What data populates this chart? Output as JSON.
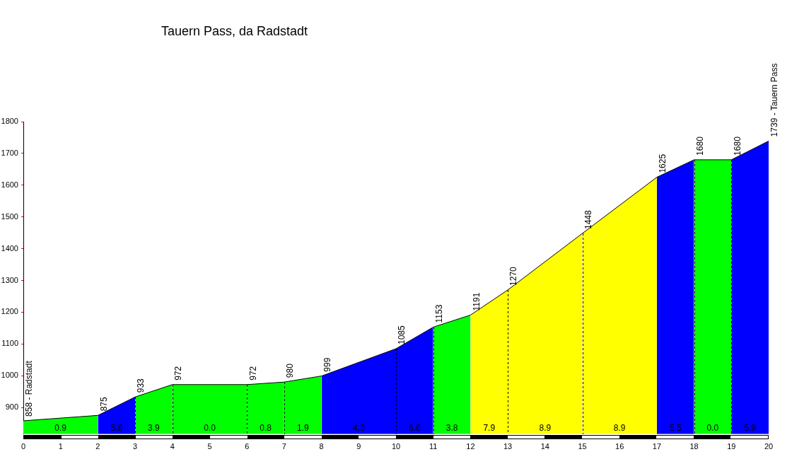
{
  "chart_data": {
    "type": "area",
    "title": "Tauern Pass, da Radstadt",
    "xlim": [
      0,
      20
    ],
    "xticks": [
      0,
      1,
      2,
      3,
      4,
      5,
      6,
      7,
      8,
      9,
      10,
      11,
      12,
      13,
      14,
      15,
      16,
      17,
      18,
      19,
      20
    ],
    "ylim": [
      816,
      1800
    ],
    "yticks": [
      900,
      1000,
      1100,
      1200,
      1300,
      1400,
      1500,
      1600,
      1700,
      1800
    ],
    "legend": false,
    "marker": "none",
    "series": [
      {
        "type": "line",
        "color": "#000000",
        "x": [
          0,
          2,
          3,
          4,
          6,
          7,
          8,
          10,
          11,
          12,
          13,
          15,
          17,
          18,
          19,
          20
        ],
        "values": [
          858,
          875,
          933,
          972,
          972,
          980,
          999,
          1085,
          1153,
          1191,
          1270,
          1448,
          1625,
          1680,
          1680,
          1739
        ],
        "value_labels": [
          "858 - Radstadt",
          "875",
          "933",
          "972",
          "972",
          "980",
          "999",
          "1085",
          "1153",
          "1191",
          "1270",
          "1448",
          "1625",
          "1680",
          "1680",
          "1739 - Tauern Pass"
        ]
      },
      {
        "color": "#00ff00",
        "x": [
          0,
          2
        ],
        "values": [
          858,
          875
        ]
      },
      {
        "color": "#0000ff",
        "x": [
          2,
          3
        ],
        "values": [
          875,
          933
        ]
      },
      {
        "color": "#00ff00",
        "x": [
          3,
          4
        ],
        "values": [
          933,
          972
        ]
      },
      {
        "color": "#00ff00",
        "x": [
          4,
          6
        ],
        "values": [
          972,
          972
        ]
      },
      {
        "color": "#00ff00",
        "x": [
          6,
          7
        ],
        "values": [
          972,
          980
        ]
      },
      {
        "color": "#00ff00",
        "x": [
          7,
          8
        ],
        "values": [
          980,
          999
        ]
      },
      {
        "color": "#0000ff",
        "x": [
          8,
          10
        ],
        "values": [
          999,
          1085
        ]
      },
      {
        "color": "#0000ff",
        "x": [
          10,
          11
        ],
        "values": [
          1085,
          1153
        ]
      },
      {
        "color": "#00ff00",
        "x": [
          11,
          12
        ],
        "values": [
          1153,
          1191
        ]
      },
      {
        "color": "#ffff00",
        "x": [
          12,
          13
        ],
        "values": [
          1191,
          1270
        ]
      },
      {
        "color": "#ffff00",
        "x": [
          13,
          15
        ],
        "values": [
          1270,
          1448
        ]
      },
      {
        "color": "#ffff00",
        "x": [
          15,
          17
        ],
        "values": [
          1448,
          1625
        ]
      },
      {
        "color": "#0000ff",
        "x": [
          17,
          18
        ],
        "values": [
          1625,
          1680
        ]
      },
      {
        "color": "#00ff00",
        "x": [
          18,
          19
        ],
        "values": [
          1680,
          1680
        ]
      },
      {
        "color": "#0000ff",
        "x": [
          19,
          20
        ],
        "values": [
          1680,
          1739
        ]
      }
    ],
    "ref_lines": [
      {
        "axis": "x",
        "value": 3,
        "line_style": "dashed"
      },
      {
        "axis": "x",
        "value": 4,
        "line_style": "dashed"
      },
      {
        "axis": "x",
        "value": 6,
        "line_style": "dashed"
      },
      {
        "axis": "x",
        "value": 7,
        "line_style": "dashed"
      },
      {
        "axis": "x",
        "value": 10,
        "line_style": "dashed"
      },
      {
        "axis": "x",
        "value": 11,
        "line_style": "dashed"
      },
      {
        "axis": "x",
        "value": 13,
        "line_style": "dashed"
      },
      {
        "axis": "x",
        "value": 15,
        "line_style": "dashed"
      },
      {
        "axis": "x",
        "value": 18,
        "line_style": "dashed"
      },
      {
        "axis": "x",
        "value": 19,
        "line_style": "dashed"
      }
    ],
    "annotations": [
      "0.9",
      "5.8",
      "3.9",
      "0.0",
      "0.8",
      "1.9",
      "4.3",
      "6.8",
      "3.8",
      "7.9",
      "8.9",
      "8.9",
      "5.5",
      "0.0",
      "5.9"
    ]
  }
}
